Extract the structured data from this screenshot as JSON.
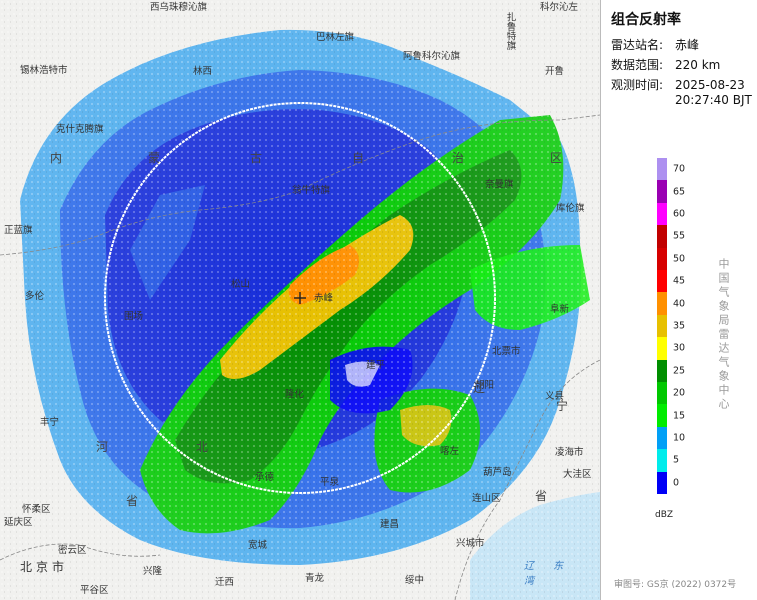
{
  "title": "组合反射率",
  "info": [
    {
      "label": "雷达站名:",
      "value": "赤峰"
    },
    {
      "label": "数据范围:",
      "value": "220 km"
    },
    {
      "label": "观测时间:",
      "value": "2025-08-23"
    },
    {
      "label": "",
      "value": "20:27:40 BJT"
    }
  ],
  "legend": {
    "unit": "dBZ",
    "ticks": [
      "70",
      "65",
      "60",
      "55",
      "50",
      "45",
      "40",
      "35",
      "30",
      "25",
      "20",
      "15",
      "10",
      "5",
      "0"
    ],
    "colors": [
      "#ad90f0",
      "#9a00b2",
      "#ff00ff",
      "#c10000",
      "#d60000",
      "#ff0000",
      "#ff9000",
      "#e7c000",
      "#ffff00",
      "#008e00",
      "#00c800",
      "#00ec00",
      "#01a0f6",
      "#00ecec",
      "#0000f6"
    ]
  },
  "agency": "中国气象局雷达气象中心",
  "approval": "审图号: GS京 (2022) 0372号",
  "places": [
    {
      "name": "西乌珠穆沁旗",
      "kind": "city"
    },
    {
      "name": "锡林浩特市",
      "kind": "city"
    },
    {
      "name": "林西",
      "kind": "city"
    },
    {
      "name": "巴林左旗",
      "kind": "city"
    },
    {
      "name": "阿鲁科尔沁旗",
      "kind": "city"
    },
    {
      "name": "扎鲁特旗",
      "kind": "city"
    },
    {
      "name": "科尔沁左",
      "kind": "city"
    },
    {
      "name": "开鲁",
      "kind": "city"
    },
    {
      "name": "克什克腾旗",
      "kind": "city"
    },
    {
      "name": "翁牛特旗",
      "kind": "city"
    },
    {
      "name": "奈曼旗",
      "kind": "city"
    },
    {
      "name": "库伦旗",
      "kind": "city"
    },
    {
      "name": "正蓝旗",
      "kind": "city"
    },
    {
      "name": "多伦",
      "kind": "city"
    },
    {
      "name": "赤峰",
      "kind": "city"
    },
    {
      "name": "松山",
      "kind": "city"
    },
    {
      "name": "围场",
      "kind": "city"
    },
    {
      "name": "建平",
      "kind": "city"
    },
    {
      "name": "朝阳",
      "kind": "city"
    },
    {
      "name": "北票市",
      "kind": "city"
    },
    {
      "name": "阜新",
      "kind": "city"
    },
    {
      "name": "义县",
      "kind": "city"
    },
    {
      "name": "凌海市",
      "kind": "city"
    },
    {
      "name": "丰宁",
      "kind": "city"
    },
    {
      "name": "隆化",
      "kind": "city"
    },
    {
      "name": "承德",
      "kind": "city"
    },
    {
      "name": "平泉",
      "kind": "city"
    },
    {
      "name": "喀左",
      "kind": "city"
    },
    {
      "name": "建昌",
      "kind": "city"
    },
    {
      "name": "葫芦岛",
      "kind": "city"
    },
    {
      "name": "连山区",
      "kind": "city"
    },
    {
      "name": "大洼区",
      "kind": "city"
    },
    {
      "name": "怀柔区",
      "kind": "city"
    },
    {
      "name": "延庆区",
      "kind": "city"
    },
    {
      "name": "密云区",
      "kind": "city"
    },
    {
      "name": "北京市",
      "kind": "city"
    },
    {
      "name": "兴隆",
      "kind": "city"
    },
    {
      "name": "迁西",
      "kind": "city"
    },
    {
      "name": "青龙",
      "kind": "city"
    },
    {
      "name": "宽城",
      "kind": "city"
    },
    {
      "name": "兴城市",
      "kind": "city"
    },
    {
      "name": "绥中",
      "kind": "city"
    },
    {
      "name": "平谷区",
      "kind": "city"
    }
  ],
  "provinces": [
    "内",
    "蒙",
    "古",
    "自",
    "治",
    "区",
    "河",
    "北",
    "省",
    "辽",
    "宁",
    "省"
  ],
  "sea": "辽 东 湾"
}
